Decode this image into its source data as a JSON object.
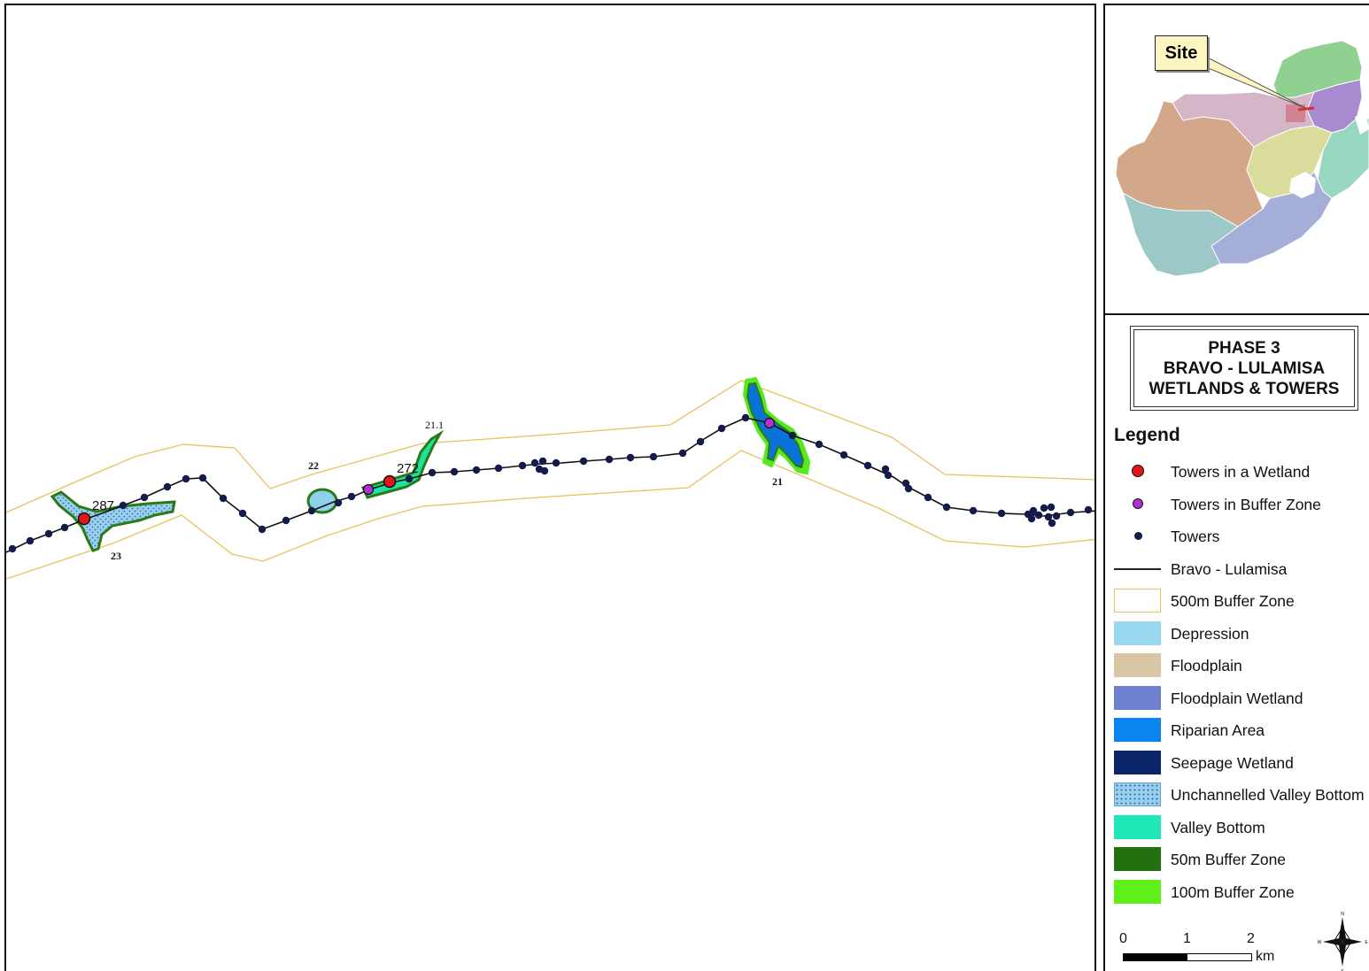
{
  "map": {
    "wetland_labels": [
      "23",
      "22",
      "21.1",
      "21"
    ],
    "tower_labels": [
      "287",
      "272"
    ],
    "colors": {
      "route": "#111111",
      "tower": "#141a4a",
      "tower_in_wetland": "#e01818",
      "tower_in_buffer": "#b030d0",
      "buffer_500m": "#e8c25a",
      "depression": "#8fd0ea",
      "riparian": "#0a72d8",
      "valley_bottom": "#1ee0a0",
      "buffer_50m": "#2a7a18",
      "buffer_100m": "#58e820"
    }
  },
  "inset": {
    "site_label": "Site",
    "region_colors": [
      "#90d090",
      "#a88ad0",
      "#d4b6c8",
      "#d3a88a",
      "#d9dc9a",
      "#98d8c0",
      "#a4aed6",
      "#9cc8c8"
    ],
    "site_color": "#e03020"
  },
  "title": {
    "line1": "PHASE 3",
    "line2": "BRAVO - LULAMISA",
    "line3": "WETLANDS & TOWERS"
  },
  "legend": {
    "heading": "Legend",
    "items": [
      {
        "label": "Towers in a Wetland",
        "symbol": "dot-red-outlined",
        "color": "#e01818"
      },
      {
        "label": "Towers in Buffer Zone",
        "symbol": "dot-purple-outlined",
        "color": "#b030d0"
      },
      {
        "label": "Towers",
        "symbol": "dot-navy",
        "color": "#141a4a"
      },
      {
        "label": "Bravo - Lulamisa",
        "symbol": "line",
        "color": "#222222"
      },
      {
        "label": "500m Buffer Zone",
        "symbol": "outline-box",
        "color": "#e8c25a"
      },
      {
        "label": "Depression",
        "symbol": "swatch",
        "color": "#9ad8ef"
      },
      {
        "label": "Floodplain",
        "symbol": "swatch",
        "color": "#d8c6a4"
      },
      {
        "label": "Floodplain Wetland",
        "symbol": "swatch",
        "color": "#6f80cf"
      },
      {
        "label": "Riparian Area",
        "symbol": "swatch",
        "color": "#0a84f0"
      },
      {
        "label": "Seepage Wetland",
        "symbol": "swatch",
        "color": "#0c2468"
      },
      {
        "label": "Unchannelled Valley Bottom",
        "symbol": "dotted-swatch",
        "color": "#9ad0ee"
      },
      {
        "label": "Valley Bottom",
        "symbol": "swatch",
        "color": "#1ee8b8"
      },
      {
        "label": "50m Buffer Zone",
        "symbol": "swatch",
        "color": "#227010"
      },
      {
        "label": "100m Buffer Zone",
        "symbol": "swatch",
        "color": "#5ef018"
      }
    ]
  },
  "scalebar": {
    "ticks": [
      "0",
      "1",
      "2"
    ],
    "unit": "km"
  },
  "compass": {
    "n": "N",
    "s": "S",
    "e": "E",
    "w": "W"
  }
}
